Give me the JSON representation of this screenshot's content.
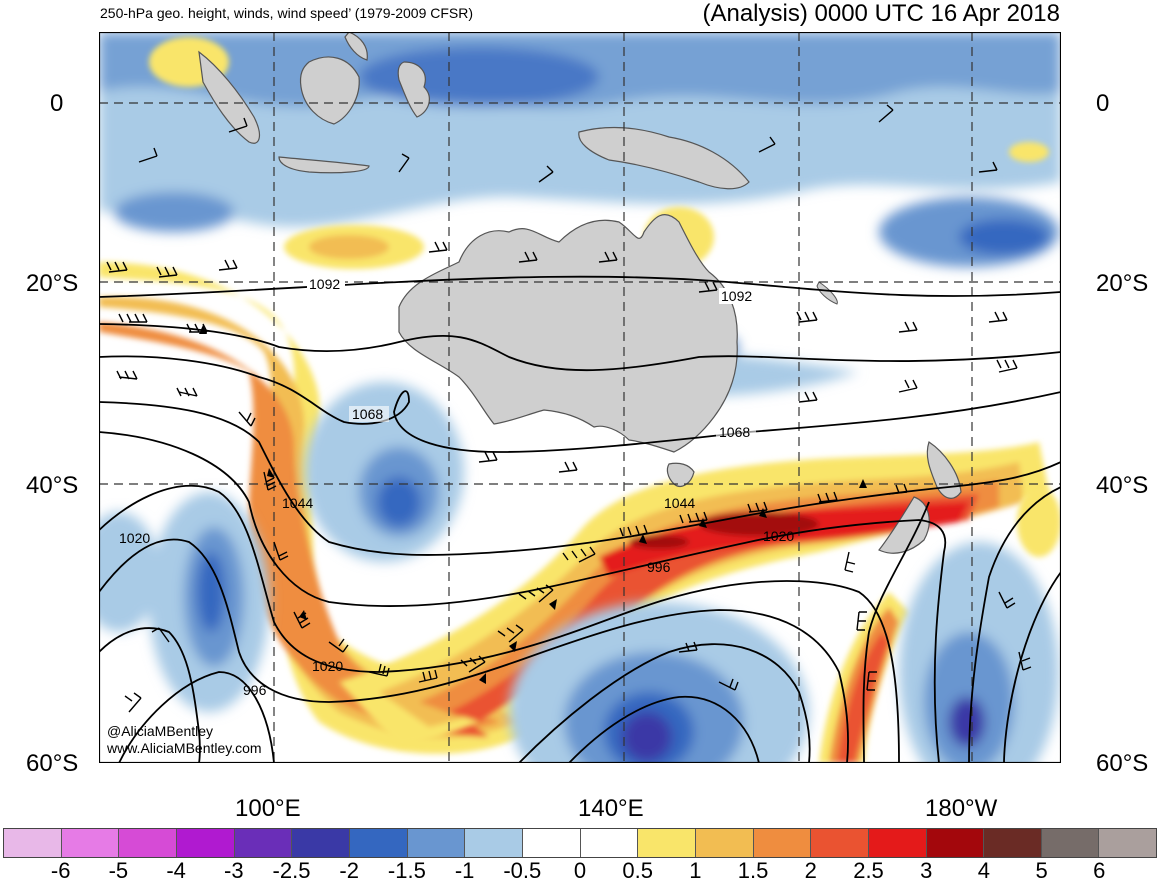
{
  "header": {
    "left_title": "250-hPa geo. height, winds, wind speed’ (1979-2009 CFSR)",
    "right_title": "(Analysis) 0000 UTC 16 Apr 2018"
  },
  "map": {
    "lat_labels": [
      "0",
      "20°S",
      "40°S",
      "60°S"
    ],
    "lon_labels": [
      "100°E",
      "140°E",
      "180°W"
    ],
    "contour_labels": [
      "1092",
      "1092",
      "1068",
      "1068",
      "1044",
      "1044",
      "1020",
      "1020",
      "1020",
      "996",
      "996"
    ],
    "credit_handle": "@AliciaMBentley",
    "credit_site": "www.AliciaMBentley.com",
    "land_color": "#cfcfcf",
    "coast_color": "#555555"
  },
  "colorbar": {
    "labels": [
      "-6",
      "-5",
      "-4",
      "-3",
      "-2.5",
      "-2",
      "-1.5",
      "-1",
      "-0.5",
      "0",
      "0.5",
      "1",
      "1.5",
      "2",
      "2.5",
      "3",
      "4",
      "5",
      "6"
    ],
    "colors": [
      "#e8b8e8",
      "#e67be6",
      "#d64bd6",
      "#b01ad0",
      "#6a2eb8",
      "#3a39a6",
      "#3467c0",
      "#6996d0",
      "#a9cbe6",
      "#ffffff",
      "#ffffff",
      "#f9e56a",
      "#f2bd52",
      "#ef8d3f",
      "#ea5331",
      "#e41a1a",
      "#a3070c",
      "#6a2b25",
      "#766c69",
      "#aa9f9d"
    ]
  }
}
